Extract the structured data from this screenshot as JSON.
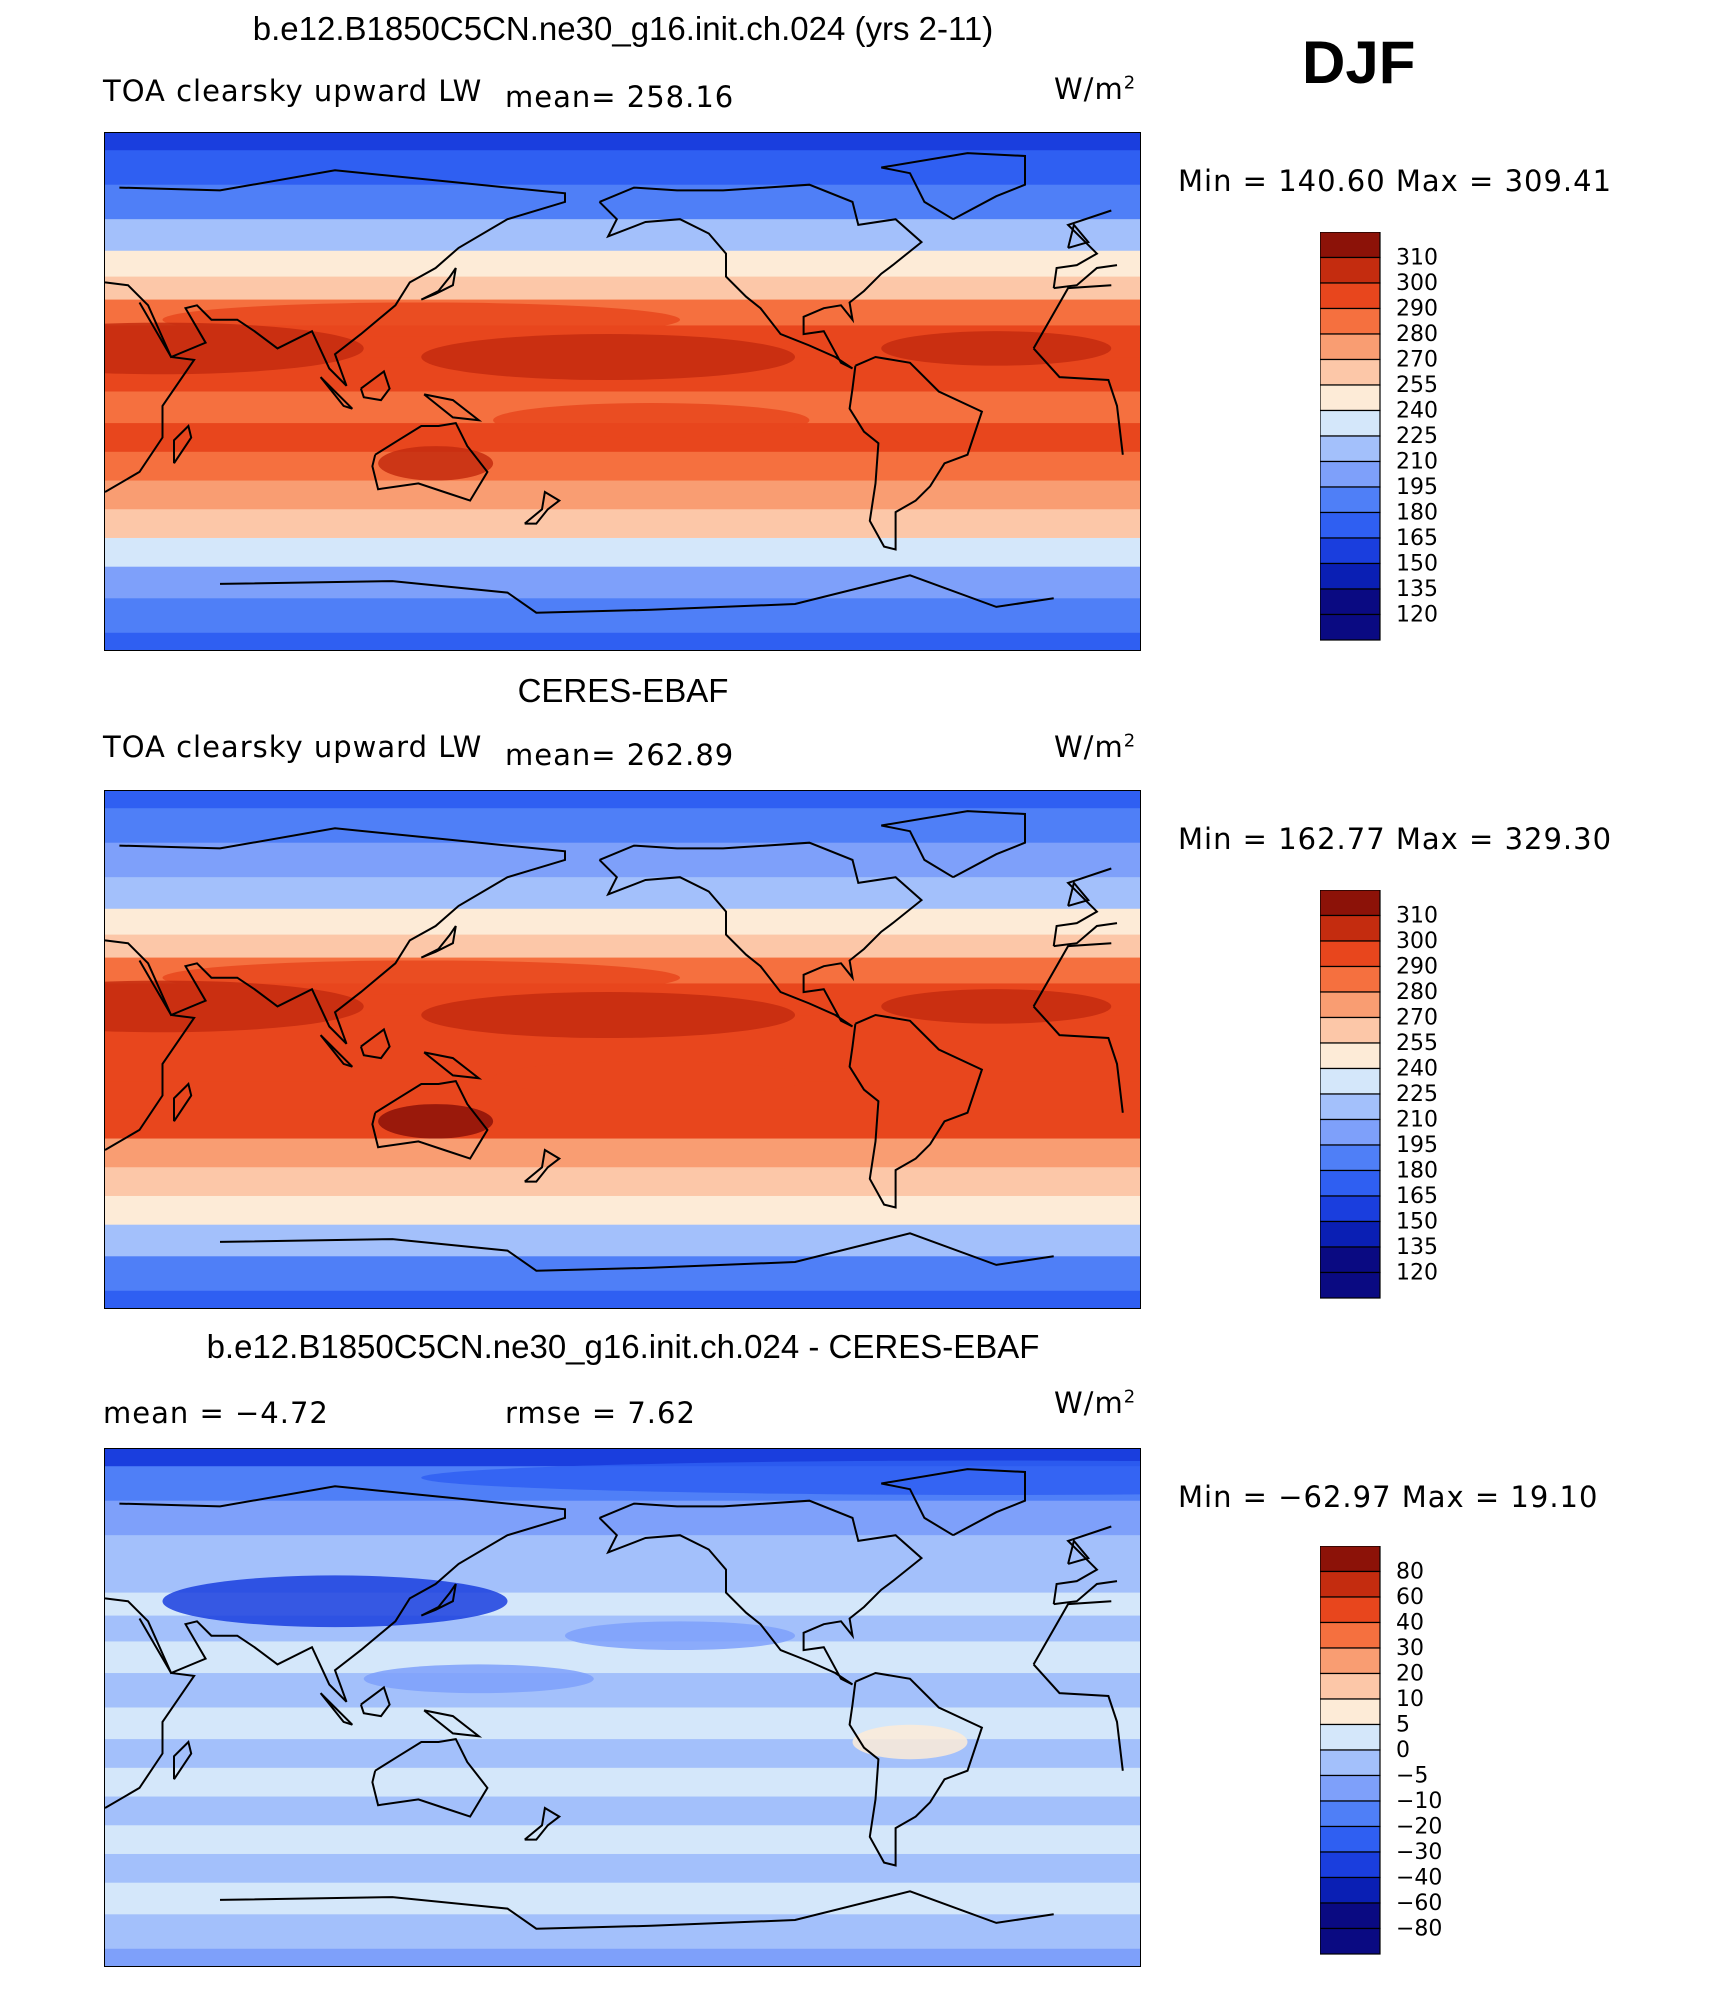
{
  "season": "DJF",
  "units": "W/m",
  "units_sup": "2",
  "palette": [
    "#0a0a82",
    "#0a1fb4",
    "#1a3ede",
    "#2f5ff2",
    "#4f7ff7",
    "#7ea0fa",
    "#a3c0fb",
    "#d4e7fa",
    "#fdebd7",
    "#fcc7a8",
    "#f99d72",
    "#f5703f",
    "#e8461d",
    "#c42c0f",
    "#8c1208"
  ],
  "land_color": "#d9653a",
  "chart_data": [
    {
      "type": "heatmap",
      "id": "model",
      "title": "b.e12.B1850C5CN.ne30_g16.init.ch.024 (yrs 2-11)",
      "variable": "TOA clearsky upward LW",
      "stat_left": "mean=  258.16",
      "min_max": "Min  =  140.60  Max  =  309.41",
      "min": 140.6,
      "max": 309.41,
      "mean": 258.16,
      "levels": [
        "310",
        "300",
        "290",
        "280",
        "270",
        "255",
        "240",
        "225",
        "210",
        "195",
        "180",
        "165",
        "150",
        "135",
        "120"
      ],
      "zonal_profile": [
        {
          "lat": 90,
          "idx": 2
        },
        {
          "lat": 78,
          "idx": 3
        },
        {
          "lat": 66,
          "idx": 4
        },
        {
          "lat": 54,
          "idx": 6
        },
        {
          "lat": 44,
          "idx": 8
        },
        {
          "lat": 36,
          "idx": 9
        },
        {
          "lat": 28,
          "idx": 11
        },
        {
          "lat": 18,
          "idx": 12
        },
        {
          "lat": 6,
          "idx": 12
        },
        {
          "lat": -6,
          "idx": 11
        },
        {
          "lat": -16,
          "idx": 12
        },
        {
          "lat": -26,
          "idx": 11
        },
        {
          "lat": -36,
          "idx": 10
        },
        {
          "lat": -46,
          "idx": 9
        },
        {
          "lat": -56,
          "idx": 7
        },
        {
          "lat": -66,
          "idx": 5
        },
        {
          "lat": -78,
          "idx": 4
        },
        {
          "lat": -90,
          "idx": 3
        }
      ]
    },
    {
      "type": "heatmap",
      "id": "obs",
      "title": "CERES-EBAF",
      "variable": "TOA clearsky upward LW",
      "stat_left": "mean=  262.89",
      "min_max": "Min  =  162.77  Max  =  329.30",
      "min": 162.77,
      "max": 329.3,
      "mean": 262.89,
      "levels": [
        "310",
        "300",
        "290",
        "280",
        "270",
        "255",
        "240",
        "225",
        "210",
        "195",
        "180",
        "165",
        "150",
        "135",
        "120"
      ],
      "zonal_profile": [
        {
          "lat": 90,
          "idx": 3
        },
        {
          "lat": 78,
          "idx": 4
        },
        {
          "lat": 66,
          "idx": 5
        },
        {
          "lat": 54,
          "idx": 6
        },
        {
          "lat": 44,
          "idx": 8
        },
        {
          "lat": 36,
          "idx": 9
        },
        {
          "lat": 28,
          "idx": 11
        },
        {
          "lat": 18,
          "idx": 12
        },
        {
          "lat": 6,
          "idx": 12
        },
        {
          "lat": -6,
          "idx": 12
        },
        {
          "lat": -16,
          "idx": 12
        },
        {
          "lat": -26,
          "idx": 12
        },
        {
          "lat": -36,
          "idx": 10
        },
        {
          "lat": -46,
          "idx": 9
        },
        {
          "lat": -56,
          "idx": 8
        },
        {
          "lat": -66,
          "idx": 6
        },
        {
          "lat": -78,
          "idx": 4
        },
        {
          "lat": -90,
          "idx": 3
        }
      ]
    },
    {
      "type": "heatmap",
      "id": "diff",
      "title": "b.e12.B1850C5CN.ne30_g16.init.ch.024 - CERES-EBAF",
      "stat_left": "mean =    −4.72",
      "stat_right": "rmse =     7.62",
      "min_max": "Min  =  −62.97  Max  =    19.10",
      "min": -62.97,
      "max": 19.1,
      "mean": -4.72,
      "rmse": 7.62,
      "levels": [
        "80",
        "60",
        "40",
        "30",
        "20",
        "10",
        "5",
        "0",
        "−5",
        "−10",
        "−20",
        "−30",
        "−40",
        "−60",
        "−80"
      ],
      "zonal_profile": [
        {
          "lat": 90,
          "idx": 2
        },
        {
          "lat": 78,
          "idx": 4
        },
        {
          "lat": 66,
          "idx": 5
        },
        {
          "lat": 54,
          "idx": 6
        },
        {
          "lat": 44,
          "idx": 6
        },
        {
          "lat": 36,
          "idx": 7
        },
        {
          "lat": 28,
          "idx": 6
        },
        {
          "lat": 18,
          "idx": 7
        },
        {
          "lat": 6,
          "idx": 6
        },
        {
          "lat": -6,
          "idx": 7
        },
        {
          "lat": -16,
          "idx": 6
        },
        {
          "lat": -26,
          "idx": 7
        },
        {
          "lat": -36,
          "idx": 6
        },
        {
          "lat": -46,
          "idx": 7
        },
        {
          "lat": -56,
          "idx": 6
        },
        {
          "lat": -66,
          "idx": 7
        },
        {
          "lat": -78,
          "idx": 6
        },
        {
          "lat": -90,
          "idx": 5
        }
      ]
    }
  ]
}
